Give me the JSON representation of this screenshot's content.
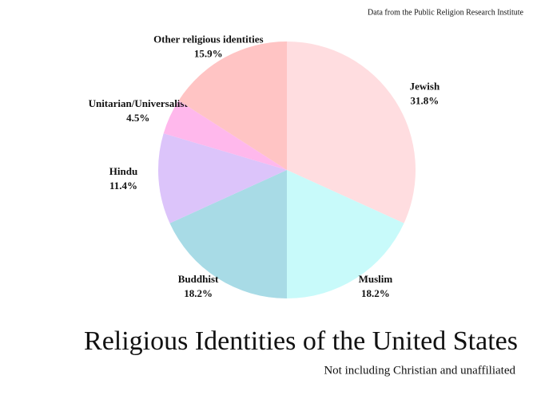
{
  "chart_data": {
    "type": "pie",
    "title": "Religious Identities of the United States",
    "subtitle": "Not including Christian and unaffiliated",
    "source": "Data from the Public Religion Research Institute",
    "categories": [
      "Jewish",
      "Muslim",
      "Buddhist",
      "Hindu",
      "Unitarian/Universalist",
      "Other religious identities"
    ],
    "values": [
      31.8,
      18.2,
      18.2,
      11.4,
      4.5,
      15.9
    ],
    "value_labels": [
      "31.8%",
      "18.2%",
      "18.2%",
      "11.4%",
      "4.5%",
      "15.9%"
    ],
    "colors": [
      "#ffdde0",
      "#c8fafa",
      "#a8dbe6",
      "#dcc4fa",
      "#ffb8ec",
      "#ffc4c4"
    ]
  }
}
